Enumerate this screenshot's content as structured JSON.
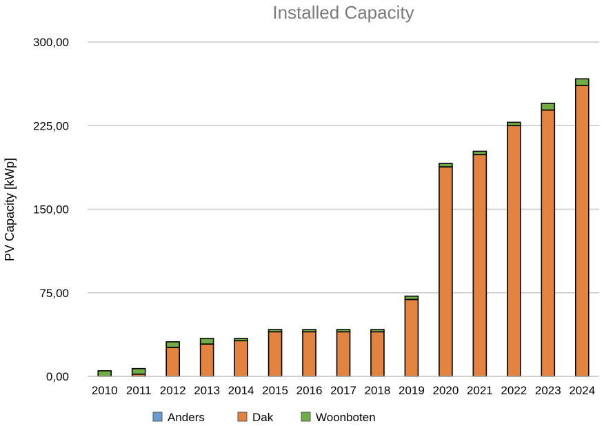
{
  "chart_data": {
    "type": "bar",
    "stacked": true,
    "title": "Installed Capacity",
    "xlabel": "",
    "ylabel": "PV Capacity [kWp]",
    "ylim": [
      0,
      300
    ],
    "yticks": [
      "0,00",
      "75,00",
      "150,00",
      "225,00",
      "300,00"
    ],
    "ytick_values": [
      0,
      75,
      150,
      225,
      300
    ],
    "grid": true,
    "legend_position": "bottom",
    "categories": [
      "2010",
      "2011",
      "2012",
      "2013",
      "2014",
      "2015",
      "2016",
      "2017",
      "2018",
      "2019",
      "2020",
      "2021",
      "2022",
      "2023",
      "2024"
    ],
    "series": [
      {
        "name": "Anders",
        "color": "#6a9bd1",
        "values": [
          0,
          0,
          0,
          0,
          0,
          0,
          0,
          0,
          0,
          0,
          0,
          0,
          0,
          0,
          0
        ]
      },
      {
        "name": "Dak",
        "color": "#e2843f",
        "values": [
          0,
          2,
          26,
          29,
          32,
          40,
          40,
          40,
          40,
          69,
          188,
          199,
          225,
          239,
          261
        ]
      },
      {
        "name": "Woonboten",
        "color": "#70ad47",
        "values": [
          5,
          5,
          5,
          5,
          2,
          2,
          2,
          2,
          2,
          3,
          3,
          3,
          3,
          6,
          6
        ]
      }
    ]
  }
}
